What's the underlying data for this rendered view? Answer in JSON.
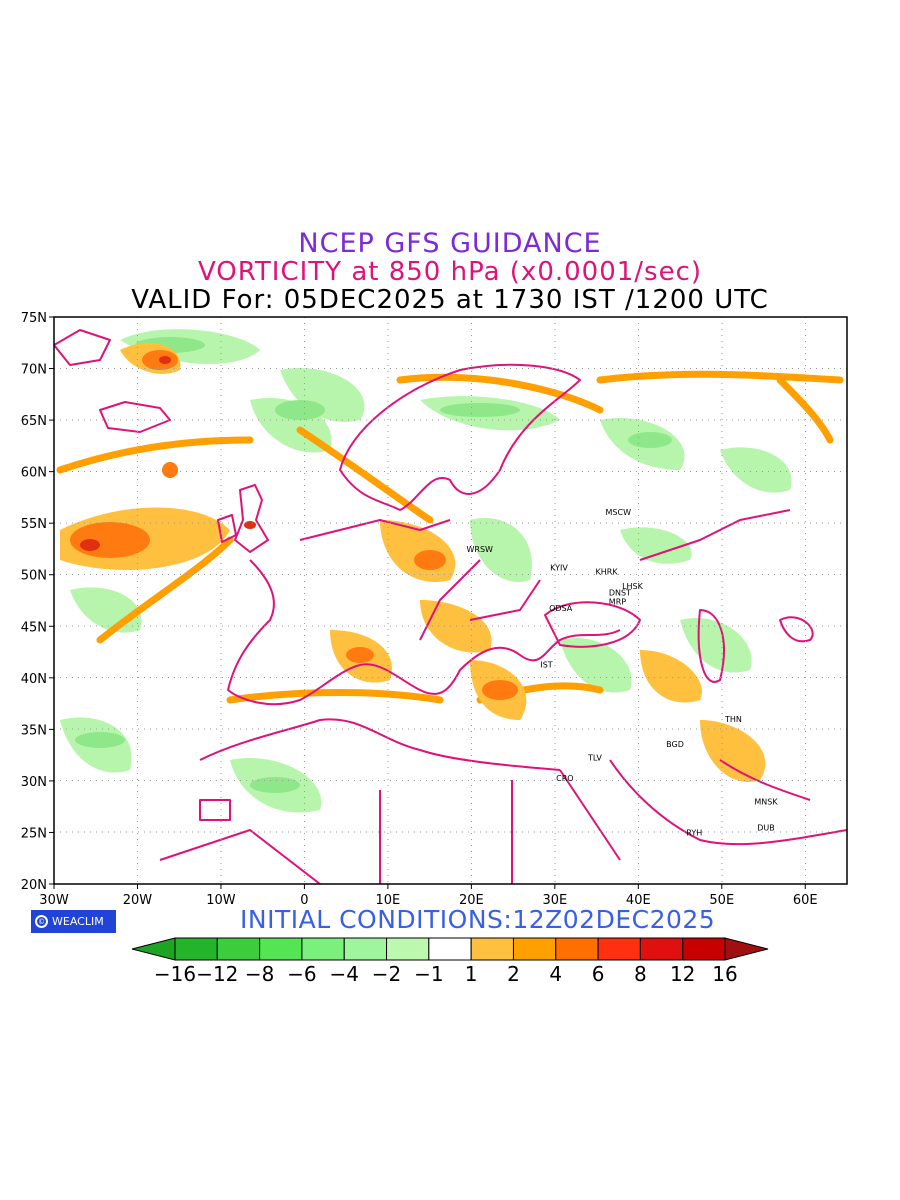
{
  "title": {
    "line1": "NCEP GFS GUIDANCE",
    "line2": "VORTICITY at 850 hPa (x0.0001/sec)",
    "line3": "VALID For: 05DEC2025 at 1730 IST /1200 UTC"
  },
  "axes": {
    "lat_labels": [
      "75N",
      "70N",
      "65N",
      "60N",
      "55N",
      "50N",
      "45N",
      "40N",
      "35N",
      "30N",
      "25N",
      "20N"
    ],
    "lon_labels": [
      "30W",
      "20W",
      "10W",
      "0",
      "10E",
      "20E",
      "30E",
      "40E",
      "50E",
      "60E"
    ],
    "lat_range": [
      20,
      75
    ],
    "lon_range": [
      -30,
      65
    ]
  },
  "cities": [
    {
      "name": "MSCW",
      "lon": 37.6,
      "lat": 55.8
    },
    {
      "name": "WRSW",
      "lon": 21.0,
      "lat": 52.2
    },
    {
      "name": "KYIV",
      "lon": 30.5,
      "lat": 50.4
    },
    {
      "name": "KHRK",
      "lon": 36.2,
      "lat": 50.0
    },
    {
      "name": "LHSK",
      "lon": 39.3,
      "lat": 48.6
    },
    {
      "name": "DNST",
      "lon": 37.8,
      "lat": 48.0
    },
    {
      "name": "MRP",
      "lon": 37.5,
      "lat": 47.1
    },
    {
      "name": "ODSA",
      "lon": 30.7,
      "lat": 46.5
    },
    {
      "name": "IST",
      "lon": 29.0,
      "lat": 41.0
    },
    {
      "name": "THN",
      "lon": 51.4,
      "lat": 35.7
    },
    {
      "name": "BGD",
      "lon": 44.4,
      "lat": 33.3
    },
    {
      "name": "TLV",
      "lon": 34.8,
      "lat": 32.0
    },
    {
      "name": "CRO",
      "lon": 31.2,
      "lat": 30.0
    },
    {
      "name": "MNSK",
      "lon": 55.3,
      "lat": 27.7
    },
    {
      "name": "DUB",
      "lon": 55.3,
      "lat": 25.2
    },
    {
      "name": "RYH",
      "lon": 46.7,
      "lat": 24.7
    }
  ],
  "logo": {
    "text": "WEACLIM",
    "symbol": "©"
  },
  "initial_conditions": "INITIAL CONDITIONS:12Z02DEC2025",
  "colorbar": {
    "labels": [
      "−16",
      "−12",
      "−8",
      "−6",
      "−4",
      "−2",
      "−1",
      "1",
      "2",
      "4",
      "6",
      "8",
      "12",
      "16"
    ],
    "colors": [
      "#1fa324",
      "#24b42c",
      "#3ccc3c",
      "#54e454",
      "#7cf07c",
      "#9ef59e",
      "#bcf8ae",
      "#ffffff",
      "#ffc040",
      "#ffa000",
      "#ff7000",
      "#ff3010",
      "#e01010",
      "#c80000",
      "#a01010"
    ]
  },
  "colors": {
    "coast": "#e0127a",
    "pos_light": "#ffc040",
    "pos_mid": "#ffa000",
    "pos_strong": "#ff6a10",
    "neg_light": "#b4f4a8",
    "neg_mid": "#8ee88a"
  }
}
